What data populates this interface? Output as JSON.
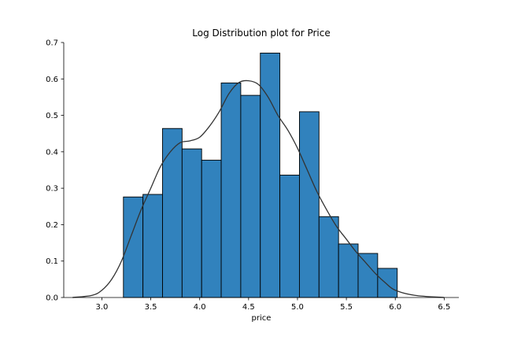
{
  "chart_data": {
    "type": "bar",
    "title": "Log Distribution plot for Price",
    "xlabel": "price",
    "ylabel": "",
    "xlim": [
      2.61,
      6.65
    ],
    "ylim": [
      0,
      0.7
    ],
    "xticks": [
      "3.0",
      "3.5",
      "4.0",
      "4.5",
      "5.0",
      "5.5",
      "6.0",
      "6.5"
    ],
    "yticks": [
      "0.0",
      "0.1",
      "0.2",
      "0.3",
      "0.4",
      "0.5",
      "0.6",
      "0.7"
    ],
    "bin_edges": [
      3.22,
      3.42,
      3.62,
      3.82,
      4.02,
      4.22,
      4.42,
      4.62,
      4.82,
      5.02,
      5.22,
      5.42,
      5.62,
      5.82,
      6.02
    ],
    "values": [
      0.276,
      0.283,
      0.464,
      0.408,
      0.377,
      0.589,
      0.555,
      0.671,
      0.336,
      0.51,
      0.222,
      0.147,
      0.121,
      0.08
    ],
    "bar_color": "#3182bd",
    "kde": {
      "color": "#333333",
      "x": [
        2.7,
        2.9,
        3.0,
        3.1,
        3.2,
        3.3,
        3.4,
        3.5,
        3.6,
        3.7,
        3.8,
        3.9,
        4.0,
        4.1,
        4.2,
        4.3,
        4.4,
        4.5,
        4.6,
        4.7,
        4.8,
        4.9,
        5.0,
        5.1,
        5.2,
        5.3,
        5.4,
        5.5,
        5.6,
        5.7,
        5.8,
        5.9,
        6.0,
        6.2,
        6.5
      ],
      "y": [
        0.0,
        0.006,
        0.02,
        0.05,
        0.1,
        0.17,
        0.24,
        0.3,
        0.36,
        0.4,
        0.425,
        0.43,
        0.44,
        0.47,
        0.51,
        0.56,
        0.59,
        0.595,
        0.585,
        0.55,
        0.5,
        0.46,
        0.41,
        0.35,
        0.29,
        0.24,
        0.195,
        0.16,
        0.125,
        0.095,
        0.065,
        0.04,
        0.02,
        0.006,
        0.0
      ]
    },
    "grid": false,
    "legend": "none"
  }
}
